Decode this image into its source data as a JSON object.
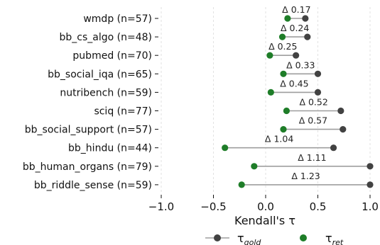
{
  "chart_data": {
    "type": "dumbbell",
    "title": "",
    "xlabel": "Kendall's τ",
    "xlim": [
      -1.0,
      1.0
    ],
    "xticks": [
      -1.0,
      -0.5,
      0.0,
      0.5,
      1.0
    ],
    "xtick_labels": [
      "−1.0",
      "−0.5",
      "0.0",
      "0.5",
      "1.0"
    ],
    "grid": "vertical dashed",
    "legend": {
      "placement": "bottom-center",
      "entries": [
        {
          "key": "gold",
          "label_main": "τ",
          "label_sub": "gold"
        },
        {
          "key": "ret",
          "label_main": "τ",
          "label_sub": "ret"
        }
      ]
    },
    "colors": {
      "gold": "#424242",
      "ret": "#1e7d28",
      "connector": "#9e9e9e",
      "grid": "#e2e2e2"
    },
    "rows": [
      {
        "label": "wmdp (n=57)",
        "gold": 0.38,
        "ret": 0.21,
        "delta_label": "Δ 0.17"
      },
      {
        "label": "bb_cs_algo (n=48)",
        "gold": 0.4,
        "ret": 0.16,
        "delta_label": "Δ 0.24"
      },
      {
        "label": "pubmed (n=70)",
        "gold": 0.29,
        "ret": 0.04,
        "delta_label": "Δ 0.25"
      },
      {
        "label": "bb_social_iqa (n=65)",
        "gold": 0.5,
        "ret": 0.17,
        "delta_label": "Δ 0.33"
      },
      {
        "label": "nutribench (n=59)",
        "gold": 0.5,
        "ret": 0.05,
        "delta_label": "Δ 0.45"
      },
      {
        "label": "sciq (n=77)",
        "gold": 0.72,
        "ret": 0.2,
        "delta_label": "Δ 0.52"
      },
      {
        "label": "bb_social_support (n=57)",
        "gold": 0.74,
        "ret": 0.17,
        "delta_label": "Δ 0.57"
      },
      {
        "label": "bb_hindu (n=44)",
        "gold": 0.65,
        "ret": -0.39,
        "delta_label": "Δ 1.04"
      },
      {
        "label": "bb_human_organs (n=79)",
        "gold": 1.0,
        "ret": -0.11,
        "delta_label": "Δ 1.11"
      },
      {
        "label": "bb_riddle_sense (n=59)",
        "gold": 1.0,
        "ret": -0.23,
        "delta_label": "Δ 1.23"
      }
    ]
  }
}
